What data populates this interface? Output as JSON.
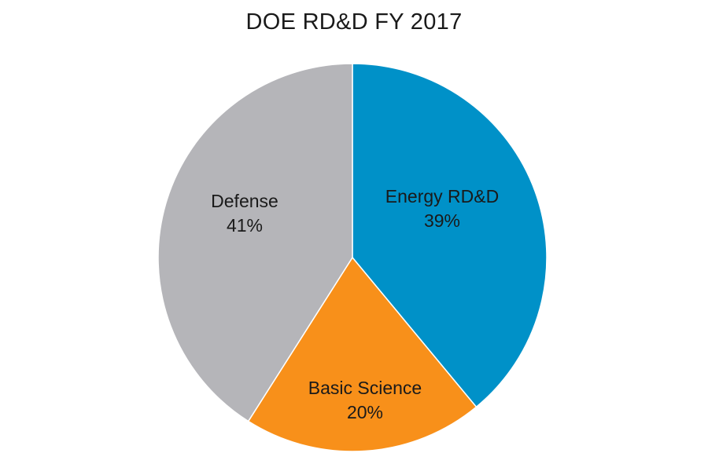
{
  "chart_data": {
    "type": "pie",
    "title": "DOE RD&D FY 2017",
    "slices": [
      {
        "label": "Energy RD&D",
        "value": 39,
        "value_text": "39%",
        "color": "#0091c8"
      },
      {
        "label": "Basic Science",
        "value": 20,
        "value_text": "20%",
        "color": "#f8901a"
      },
      {
        "label": "Defense",
        "value": 41,
        "value_text": "41%",
        "color": "#b5b5b9"
      }
    ],
    "start": "12 o'clock",
    "direction": "clockwise",
    "legend": "none (labels inside slices)"
  }
}
